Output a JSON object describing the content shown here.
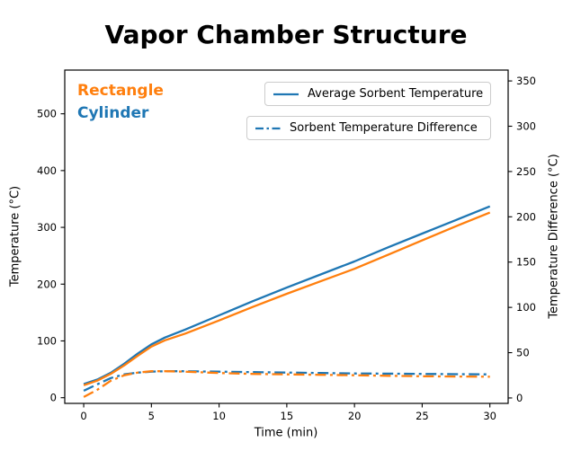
{
  "title": "Vapor Chamber Structure",
  "annotations": [
    {
      "text": "Rectangle",
      "color": "#ff7f0e"
    },
    {
      "text": "Cylinder",
      "color": "#1f77b4"
    }
  ],
  "legend": [
    {
      "label": "Average Sorbent Temperature",
      "style": "solid",
      "color": "#1f77b4"
    },
    {
      "label": "Sorbent Temperature Difference",
      "style": "dashdot",
      "color": "#1f77b4"
    }
  ],
  "chart_data": {
    "type": "line",
    "title": "Vapor Chamber Structure",
    "xlabel": "Time (min)",
    "ylabel_left": "Temperature (°C)",
    "ylabel_right": "Temperature Difference (°C)",
    "xlim": [
      -1.4,
      31.35
    ],
    "ylim_left": [
      -10,
      577
    ],
    "ylim_right": [
      -6,
      362
    ],
    "x_ticks": [
      0,
      5,
      10,
      15,
      20,
      25,
      30
    ],
    "y_ticks_left": [
      0,
      100,
      200,
      300,
      400,
      500
    ],
    "y_ticks_right": [
      0,
      50,
      100,
      150,
      200,
      250,
      300,
      350
    ],
    "grid": false,
    "x": [
      0,
      1,
      2,
      3,
      4,
      5,
      6,
      7.5,
      10,
      12.5,
      15,
      17.5,
      20,
      22.5,
      25,
      27.5,
      30
    ],
    "series": [
      {
        "name": "Cylinder - Average Sorbent Temperature",
        "axis": "left",
        "style": "solid",
        "color": "#1f77b4",
        "values": [
          24,
          32,
          44,
          60,
          78,
          94,
          106,
          120,
          145,
          170,
          194,
          217,
          240,
          265,
          289,
          313,
          337
        ]
      },
      {
        "name": "Rectangle - Average Sorbent Temperature",
        "axis": "left",
        "style": "solid",
        "color": "#ff7f0e",
        "values": [
          22,
          30,
          42,
          57,
          74,
          90,
          101,
          113,
          136,
          160,
          183,
          205,
          227,
          252,
          277,
          302,
          326
        ]
      },
      {
        "name": "Cylinder - Sorbent Temperature Difference",
        "axis": "right",
        "style": "dashdot",
        "color": "#1f77b4",
        "values": [
          8,
          15,
          22,
          26,
          28,
          29,
          29.5,
          29.5,
          29,
          28.5,
          28,
          27.5,
          27,
          26.8,
          26.5,
          26.2,
          26
        ]
      },
      {
        "name": "Rectangle - Sorbent Temperature Difference",
        "axis": "right",
        "style": "dashdot",
        "color": "#ff7f0e",
        "values": [
          1,
          9,
          19,
          25,
          28,
          29.5,
          29.5,
          29,
          27.5,
          26.5,
          26,
          25.5,
          25,
          24.5,
          24,
          23.7,
          23.5
        ]
      }
    ]
  }
}
